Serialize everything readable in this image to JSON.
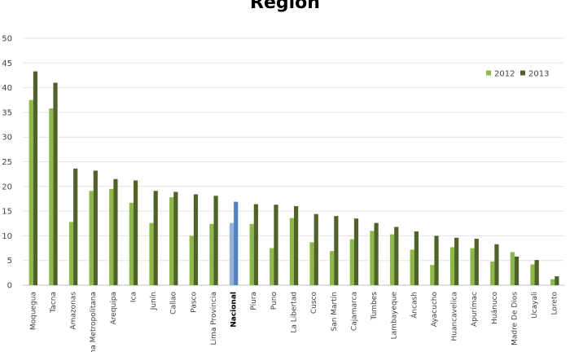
{
  "chart_data": {
    "type": "bar",
    "title": "Región",
    "xlabel": "",
    "ylabel": "",
    "ylim": [
      0,
      50
    ],
    "yticks": [
      0,
      5,
      10,
      15,
      20,
      25,
      30,
      35,
      40,
      45,
      50
    ],
    "grid": true,
    "legend_position": "top-right",
    "highlight_category": "Nacional",
    "categories": [
      "Moquegua",
      "Tacna",
      "Amazonas",
      "Lima Metropolitana",
      "Arequipa",
      "Ica",
      "Junín",
      "Callao",
      "Pasco",
      "Lima Provincia",
      "Nacional",
      "Piura",
      "Puno",
      "La Libertad",
      "Cusco",
      "San Martín",
      "Cajamarca",
      "Tumbes",
      "Lambayeque",
      "Áncash",
      "Ayacucho",
      "Huancavelica",
      "Apurímac",
      "Huánuco",
      "Madre De Dios",
      "Ucayali",
      "Loreto"
    ],
    "series": [
      {
        "name": "2012",
        "color": "#8DB84A",
        "highlight_color": "#95B3D7",
        "values": [
          37.5,
          35.8,
          12.8,
          19.1,
          19.5,
          16.7,
          12.6,
          17.8,
          10.0,
          12.4,
          12.6,
          12.4,
          7.5,
          13.6,
          8.7,
          6.9,
          9.3,
          11.0,
          10.3,
          7.2,
          4.1,
          7.7,
          7.5,
          4.8,
          6.7,
          4.2,
          1.2
        ]
      },
      {
        "name": "2013",
        "color": "#4F6228",
        "highlight_color": "#4F81BD",
        "values": [
          43.3,
          41.0,
          23.6,
          23.2,
          21.5,
          21.2,
          19.1,
          18.9,
          18.4,
          18.1,
          16.9,
          16.4,
          16.3,
          16.0,
          14.4,
          14.0,
          13.5,
          12.6,
          11.8,
          10.9,
          10.0,
          9.6,
          9.4,
          8.3,
          5.8,
          5.1,
          1.8
        ]
      }
    ]
  }
}
